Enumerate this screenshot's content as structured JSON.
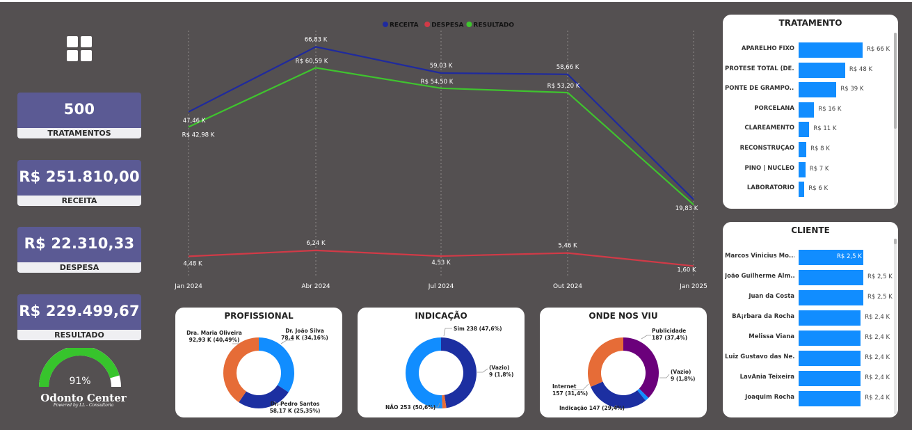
{
  "kpis": [
    {
      "value": "500",
      "label": "TRATAMENTOS"
    },
    {
      "value": "R$ 251.810,00",
      "label": "RECEITA"
    },
    {
      "value": "R$ 22.310,33",
      "label": "DESPESA"
    },
    {
      "value": "R$ 229.499,67",
      "label": "RESULTADO"
    }
  ],
  "gauge": {
    "label": "91%",
    "value": 0.91,
    "color": "#37c42c"
  },
  "logo": {
    "name": "Odonto Center",
    "sub": "Powered by LL - Consultoria"
  },
  "colors": {
    "receita": "#1f2a9e",
    "despesa": "#d13a47",
    "resultado": "#3fc42e",
    "bar": "#118dff",
    "donut_blue": "#118dff",
    "donut_orange": "#e66c37",
    "donut_navy": "#1c2fa1",
    "donut_purple": "#6b007b"
  },
  "chart_data": [
    {
      "type": "line",
      "x": [
        "Jan 2024",
        "Abr 2024",
        "Jul 2024",
        "Out 2024",
        "Jan 2025"
      ],
      "legend": [
        "RECEITA",
        "DESPESA",
        "RESULTADO"
      ],
      "series": [
        {
          "name": "RECEITA",
          "values": [
            47.46,
            66.83,
            59.03,
            58.66,
            21.4
          ],
          "labels": [
            "47,46 K",
            "66,83 K",
            "59,03 K",
            "58,66 K",
            ""
          ]
        },
        {
          "name": "DESPESA",
          "values": [
            4.48,
            6.24,
            4.53,
            5.46,
            1.6
          ],
          "labels": [
            "4,48 K",
            "6,24 K",
            "4,53 K",
            "5,46 K",
            "1,60 K"
          ]
        },
        {
          "name": "RESULTADO",
          "values": [
            42.98,
            60.59,
            54.5,
            53.2,
            19.83
          ],
          "labels": [
            "R$ 42,98 K",
            "R$ 60,59 K",
            "R$ 54,50 K",
            "R$ 53,20 K",
            "19,83 K"
          ]
        }
      ],
      "ylim": [
        0,
        70
      ]
    },
    {
      "type": "pie",
      "title": "PROFISSIONAL",
      "slices": [
        {
          "name": "Dr. João Silva",
          "value": 78.4,
          "label": "78,4 K (34,16%)"
        },
        {
          "name": "Dr. Pedro Santos",
          "value": 58.17,
          "label": "58,17 K (25,35%)"
        },
        {
          "name": "Dra. Maria Oliveira",
          "value": 92.93,
          "label": "92,93 K (40,49%)"
        }
      ]
    },
    {
      "type": "pie",
      "title": "INDICAÇÃO",
      "slices": [
        {
          "name": "Sim",
          "value": 238,
          "label": "238 (47,6%)"
        },
        {
          "name": "(Vazio)",
          "value": 9,
          "label": "9 (1,8%)"
        },
        {
          "name": "NÃO",
          "value": 253,
          "label": "253 (50,6%)"
        }
      ]
    },
    {
      "type": "pie",
      "title": "ONDE NOS VIU",
      "slices": [
        {
          "name": "Publicidade",
          "value": 187,
          "label": "187 (37,4%)"
        },
        {
          "name": "(Vazio)",
          "value": 9,
          "label": "9 (1,8%)"
        },
        {
          "name": "Indicação",
          "value": 147,
          "label": "147 (29,4%)"
        },
        {
          "name": "Internet",
          "value": 157,
          "label": "157 (31,4%)"
        }
      ]
    },
    {
      "type": "bar",
      "title": "TRATAMENTO",
      "categories": [
        "APARELHO FIXO",
        "PRÓTESE TOTAL (DE...",
        "PONTE DE GRAMPO...",
        "PORCELANA",
        "CLAREAMENTO",
        "RECONSTRUÇÃO",
        "PINO | NÚCLEO",
        "LABORATÓRIO"
      ],
      "values": [
        66,
        48,
        39,
        16,
        11,
        8,
        7,
        6
      ],
      "labels": [
        "R$ 66 K",
        "R$ 48 K",
        "R$ 39 K",
        "R$ 16 K",
        "R$ 11 K",
        "R$ 8 K",
        "R$ 7 K",
        "R$ 6 K"
      ]
    },
    {
      "type": "bar",
      "title": "CLIENTE",
      "categories": [
        "Marcos Vinicius Mo...",
        "João Guilherme Alm...",
        "Juan da Costa",
        "BÃ¡rbara da Rocha",
        "Melissa Viana",
        "Luiz Gustavo das Ne...",
        "LavÃnia Teixeira",
        "Joaquim Rocha"
      ],
      "values": [
        2.5,
        2.5,
        2.5,
        2.4,
        2.4,
        2.4,
        2.4,
        2.4
      ],
      "labels": [
        "R$ 2,5 K",
        "R$ 2,5 K",
        "R$ 2,5 K",
        "R$ 2,4 K",
        "R$ 2,4 K",
        "R$ 2,4 K",
        "R$ 2,4 K",
        "R$ 2,4 K"
      ]
    }
  ]
}
